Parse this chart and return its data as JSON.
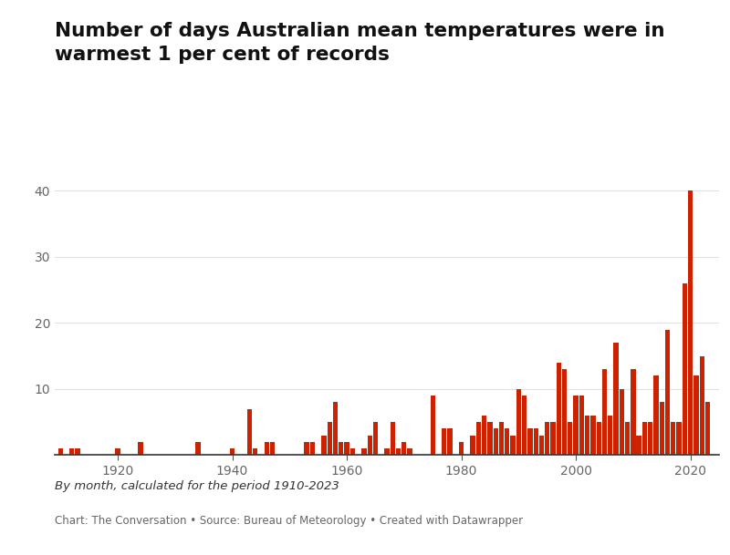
{
  "title": "Number of days Australian mean temperatures were in\nwarmest 1 per cent of records",
  "subtitle": "By month, calculated for the period 1910-2023",
  "caption": "Chart: The Conversation • Source: Bureau of Meteorology • Created with Datawrapper",
  "bar_color": "#cc2200",
  "background_color": "#ffffff",
  "grid_color": "#e0e0e0",
  "ylim": [
    0,
    42
  ],
  "yticks": [
    10,
    20,
    30,
    40
  ],
  "xlabel_years": [
    1920,
    1940,
    1960,
    1980,
    2000,
    2020
  ],
  "years": [
    1910,
    1911,
    1912,
    1913,
    1914,
    1915,
    1916,
    1917,
    1918,
    1919,
    1920,
    1921,
    1922,
    1923,
    1924,
    1925,
    1926,
    1927,
    1928,
    1929,
    1930,
    1931,
    1932,
    1933,
    1934,
    1935,
    1936,
    1937,
    1938,
    1939,
    1940,
    1941,
    1942,
    1943,
    1944,
    1945,
    1946,
    1947,
    1948,
    1949,
    1950,
    1951,
    1952,
    1953,
    1954,
    1955,
    1956,
    1957,
    1958,
    1959,
    1960,
    1961,
    1962,
    1963,
    1964,
    1965,
    1966,
    1967,
    1968,
    1969,
    1970,
    1971,
    1972,
    1973,
    1974,
    1975,
    1976,
    1977,
    1978,
    1979,
    1980,
    1981,
    1982,
    1983,
    1984,
    1985,
    1986,
    1987,
    1988,
    1989,
    1990,
    1991,
    1992,
    1993,
    1994,
    1995,
    1996,
    1997,
    1998,
    1999,
    2000,
    2001,
    2002,
    2003,
    2004,
    2005,
    2006,
    2007,
    2008,
    2009,
    2010,
    2011,
    2012,
    2013,
    2014,
    2015,
    2016,
    2017,
    2018,
    2019,
    2020,
    2021,
    2022,
    2023
  ],
  "values": [
    1,
    0,
    1,
    1,
    0,
    0,
    0,
    0,
    0,
    0,
    1,
    0,
    0,
    0,
    2,
    0,
    0,
    0,
    0,
    0,
    0,
    0,
    0,
    0,
    2,
    0,
    0,
    0,
    0,
    0,
    1,
    0,
    0,
    7,
    1,
    0,
    2,
    2,
    0,
    0,
    0,
    0,
    0,
    2,
    2,
    0,
    3,
    5,
    8,
    2,
    2,
    1,
    0,
    1,
    3,
    5,
    0,
    1,
    5,
    1,
    2,
    1,
    0,
    0,
    0,
    9,
    0,
    4,
    4,
    0,
    2,
    0,
    3,
    5,
    6,
    5,
    4,
    5,
    4,
    3,
    10,
    9,
    4,
    4,
    3,
    5,
    5,
    14,
    13,
    5,
    9,
    9,
    6,
    6,
    5,
    13,
    6,
    17,
    10,
    5,
    13,
    3,
    5,
    5,
    12,
    8,
    19,
    5,
    5,
    26,
    40,
    12,
    15,
    8
  ]
}
